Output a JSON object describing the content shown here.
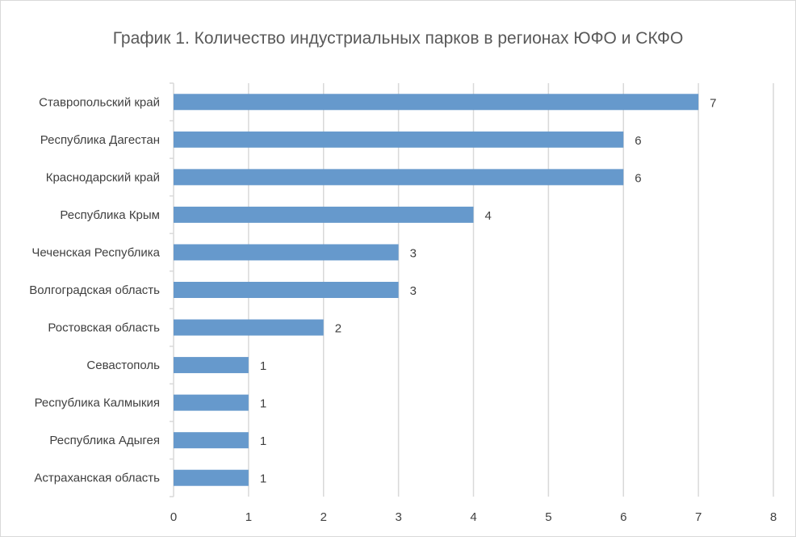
{
  "chart_data": {
    "type": "bar",
    "orientation": "horizontal",
    "title": "График 1. Количество индустриальных парков в регионах ЮФО и СКФО",
    "categories": [
      "Ставропольский край",
      "Республика Дагестан",
      "Краснодарский край",
      "Республика Крым",
      "Чеченская Республика",
      "Волгоградская область",
      "Ростовская область",
      "Севастополь",
      "Республика Калмыкия",
      "Республика Адыгея",
      "Астраханская область"
    ],
    "values": [
      7,
      6,
      6,
      4,
      3,
      3,
      2,
      1,
      1,
      1,
      1
    ],
    "xlim": [
      0,
      8
    ],
    "xticks": [
      "0",
      "1",
      "2",
      "3",
      "4",
      "5",
      "6",
      "7",
      "8"
    ],
    "grid": "vertical",
    "data_labels": true,
    "bar_color": "#6699cc",
    "grid_color": "#d9d9d9"
  }
}
